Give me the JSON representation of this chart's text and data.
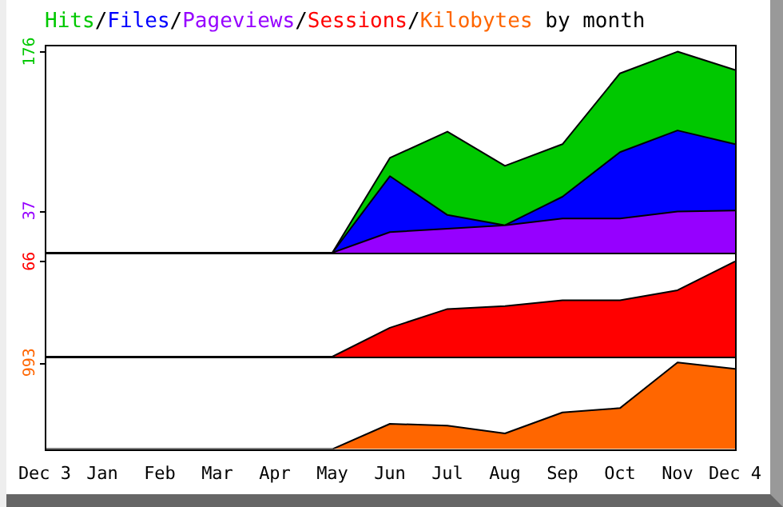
{
  "chart_data": [
    {
      "type": "area",
      "title": "Hits/Files/Pageviews/Sessions/Kilobytes by month",
      "tick_labels": "y",
      "categories": [
        null,
        null,
        null,
        null,
        null,
        null,
        null,
        null,
        null,
        null,
        null,
        null,
        null
      ],
      "ylim": [
        0,
        182
      ],
      "yticks": [
        37,
        176
      ],
      "series": [
        {
          "color": "#00c800",
          "values": [
            0,
            0,
            0,
            0,
            0,
            0,
            83,
            106,
            76,
            95,
            157,
            176,
            160
          ]
        },
        {
          "color": "#0000ff",
          "values": [
            0,
            0,
            0,
            0,
            0,
            0,
            67,
            33,
            24,
            49,
            88,
            107,
            95
          ]
        },
        {
          "color": "#9600ff",
          "values": [
            0,
            0,
            0,
            0,
            0,
            0,
            18,
            21,
            24,
            30,
            30,
            36,
            37
          ]
        }
      ]
    },
    {
      "type": "area",
      "tick_labels": "y",
      "categories": [
        null,
        null,
        null,
        null,
        null,
        null,
        null,
        null,
        null,
        null,
        null,
        null,
        null
      ],
      "ylim": [
        0,
        72
      ],
      "yticks": [
        66
      ],
      "series": [
        {
          "color": "#ff0000",
          "values": [
            0,
            0,
            0,
            0,
            0,
            0,
            20,
            33,
            35,
            39,
            39,
            46,
            66
          ]
        }
      ]
    },
    {
      "type": "area",
      "categories": [
        "Dec 3",
        "Jan",
        "Feb",
        "Mar",
        "Apr",
        "May",
        "Jun",
        "Jul",
        "Aug",
        "Sep",
        "Oct",
        "Nov",
        "Dec 4"
      ],
      "ylim": [
        0,
        1060
      ],
      "yticks": [
        993
      ],
      "series": [
        {
          "color": "#ff6600",
          "values": [
            0,
            0,
            0,
            0,
            0,
            0,
            290,
            270,
            180,
            420,
            470,
            993,
            920
          ]
        }
      ]
    }
  ]
}
